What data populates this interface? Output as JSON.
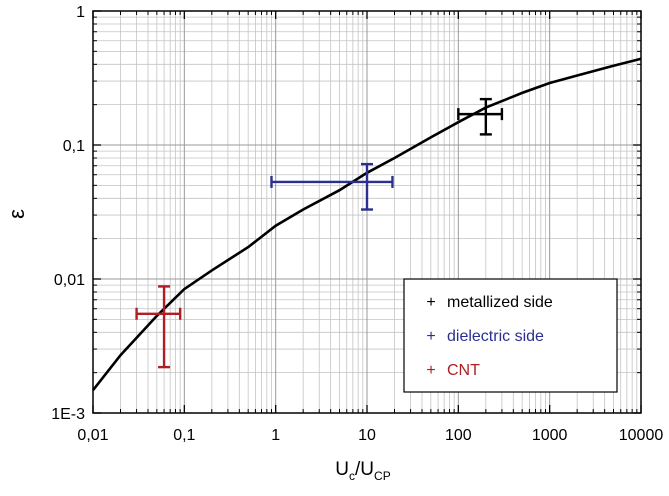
{
  "chart_data": {
    "type": "scatter",
    "title": "",
    "xlabel": {
      "main": "U",
      "sub1": "c",
      "slash": "/U",
      "sub2": "CP"
    },
    "ylabel": "ε",
    "x_scale": "log",
    "y_scale": "log",
    "xlim": [
      0.01,
      10000
    ],
    "ylim": [
      0.001,
      1
    ],
    "grid": true,
    "legend_position": "bottom-right",
    "x_ticks": [
      {
        "value": 0.01,
        "label": "0,01"
      },
      {
        "value": 0.1,
        "label": "0,1"
      },
      {
        "value": 1,
        "label": "1"
      },
      {
        "value": 10,
        "label": "10"
      },
      {
        "value": 100,
        "label": "100"
      },
      {
        "value": 1000,
        "label": "1000"
      },
      {
        "value": 10000,
        "label": "10000"
      }
    ],
    "y_ticks": [
      {
        "value": 0.001,
        "label": "1E-3"
      },
      {
        "value": 0.01,
        "label": "0,01"
      },
      {
        "value": 0.1,
        "label": "0,1"
      },
      {
        "value": 1,
        "label": "1"
      }
    ],
    "curve": {
      "color": "#000000",
      "x": [
        0.01,
        0.02,
        0.05,
        0.1,
        0.2,
        0.5,
        1,
        2,
        5,
        10,
        20,
        50,
        100,
        200,
        500,
        1000,
        2000,
        5000,
        10000
      ],
      "y": [
        0.00148,
        0.0027,
        0.0053,
        0.0084,
        0.0116,
        0.0173,
        0.025,
        0.033,
        0.046,
        0.062,
        0.08,
        0.114,
        0.148,
        0.19,
        0.245,
        0.29,
        0.33,
        0.39,
        0.44
      ]
    },
    "series": [
      {
        "name": "metallized side",
        "symbol": "+",
        "color": "#000000",
        "x": 200,
        "y": 0.17,
        "x_err": [
          100,
          300
        ],
        "y_err": [
          0.12,
          0.22
        ]
      },
      {
        "name": "dielectric side",
        "symbol": "+",
        "color": "#2b2f8f",
        "x": 10,
        "y": 0.053,
        "x_err": [
          0.9,
          19
        ],
        "y_err": [
          0.033,
          0.072
        ]
      },
      {
        "name": "CNT",
        "symbol": "+",
        "color": "#b01e24",
        "x": 0.06,
        "y": 0.0055,
        "x_err": [
          0.03,
          0.09
        ],
        "y_err": [
          0.0022,
          0.0088
        ]
      }
    ]
  }
}
